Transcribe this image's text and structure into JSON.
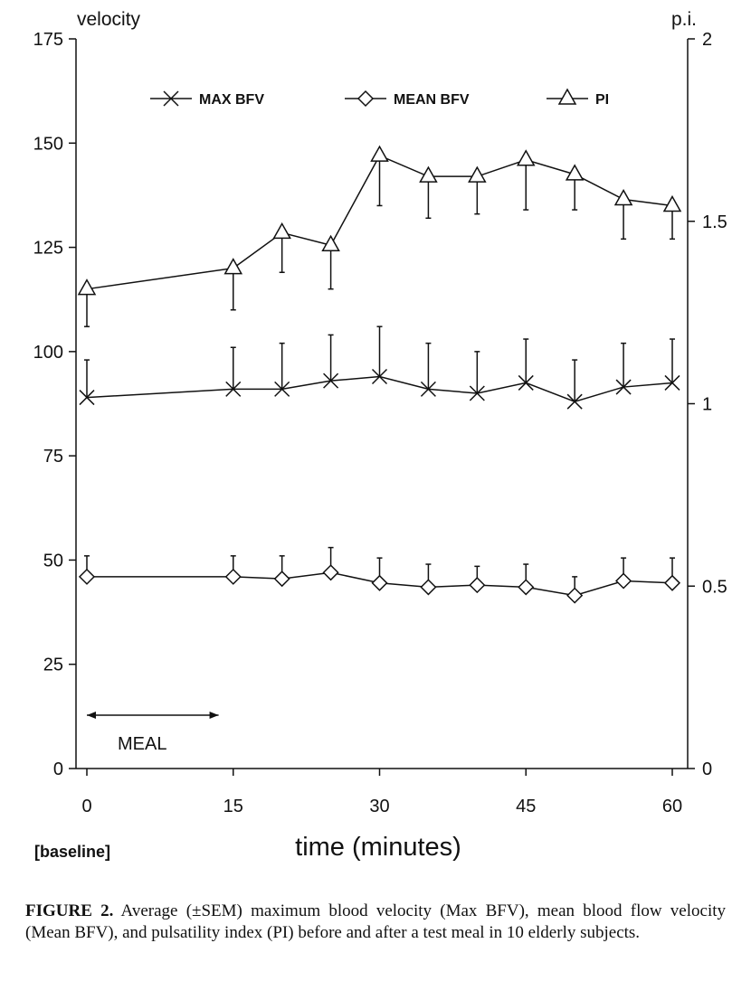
{
  "chart_data": {
    "type": "line",
    "title": "",
    "xlabel": "time (minutes)",
    "x_sublabel": "[baseline]",
    "ylabel_left": "velocity",
    "ylabel_right": "p.i.",
    "x": [
      0,
      15,
      20,
      25,
      30,
      35,
      40,
      45,
      50,
      55,
      60
    ],
    "xlim": [
      0,
      60
    ],
    "xticks": [
      "0",
      "15",
      "30",
      "45",
      "60"
    ],
    "ylim_left": [
      0,
      175
    ],
    "yticks_left": [
      "0",
      "25",
      "50",
      "75",
      "100",
      "125",
      "150",
      "175"
    ],
    "ylim_right": [
      0,
      2
    ],
    "yticks_right": [
      "0",
      "0.5",
      "1",
      "1.5",
      "2"
    ],
    "series": [
      {
        "name": "MAX BFV",
        "marker": "x",
        "axis": "left",
        "values": [
          89,
          91,
          91,
          93,
          94,
          91,
          90,
          92.5,
          88,
          91.5,
          92.5
        ],
        "error_upper": [
          98,
          101,
          102,
          104,
          106,
          102,
          100,
          103,
          98,
          102,
          103
        ]
      },
      {
        "name": "MEAN BFV",
        "marker": "diamond",
        "axis": "left",
        "values": [
          46,
          46,
          45.5,
          47,
          44.5,
          43.5,
          44,
          43.5,
          41.5,
          45,
          44.5
        ],
        "error_upper": [
          51,
          51,
          51,
          53,
          50.5,
          49,
          48.5,
          49,
          46,
          50.5,
          50.5
        ]
      },
      {
        "name": "PI",
        "marker": "triangle",
        "axis": "left",
        "values": [
          115,
          120,
          128.5,
          125.5,
          147,
          142,
          142,
          146,
          142.5,
          136.5,
          135
        ],
        "error_lower": [
          106,
          110,
          119,
          115,
          135,
          132,
          133,
          134,
          134,
          127,
          127
        ]
      }
    ],
    "annotations": [
      {
        "label": "MEAL",
        "from_x": 0,
        "to_x": 13.5
      }
    ],
    "legend": "top-center"
  },
  "caption": {
    "label": "FIGURE 2.",
    "text": " Average (±SEM) maximum blood velocity (Max BFV), mean blood flow velocity (Mean BFV), and pulsatility index (PI) before and after a test meal in 10 elderly subjects."
  }
}
